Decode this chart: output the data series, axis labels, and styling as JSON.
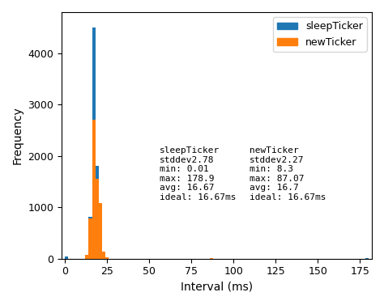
{
  "title": "",
  "xlabel": "Interval (ms)",
  "ylabel": "Frequency",
  "xlim": [
    -2,
    182
  ],
  "ylim": [
    0,
    4800
  ],
  "xticks": [
    0,
    25,
    50,
    75,
    100,
    125,
    150,
    175
  ],
  "yticks": [
    0,
    1000,
    2000,
    3000,
    4000
  ],
  "sleep_color": "#1f77b4",
  "new_color": "#ff7f0e",
  "sleep_label": "sleepTicker",
  "new_label": "newTicker",
  "annotation_sleep": "sleepTicker\nstddev2.78\nmin: 0.01\nmax: 178.9\navg: 16.67\nideal: 16.67ms",
  "annotation_new": "newTicker\nstddev2.27\nmin: 8.3\nmax: 87.07\navg: 16.7\nideal: 16.67ms",
  "figsize": [
    4.74,
    3.77
  ],
  "dpi": 100,
  "bin_width": 2,
  "sleep_bar_data": [
    [
      0,
      2,
      50
    ],
    [
      14,
      16,
      820
    ],
    [
      16,
      18,
      4500
    ],
    [
      18,
      20,
      1800
    ],
    [
      20,
      22,
      80
    ],
    [
      22,
      24,
      20
    ],
    [
      178,
      180,
      5
    ]
  ],
  "new_bar_data": [
    [
      12,
      14,
      80
    ],
    [
      14,
      16,
      780
    ],
    [
      16,
      18,
      2700
    ],
    [
      18,
      20,
      1550
    ],
    [
      20,
      22,
      1080
    ],
    [
      22,
      24,
      130
    ],
    [
      24,
      26,
      30
    ],
    [
      86,
      88,
      5
    ]
  ]
}
